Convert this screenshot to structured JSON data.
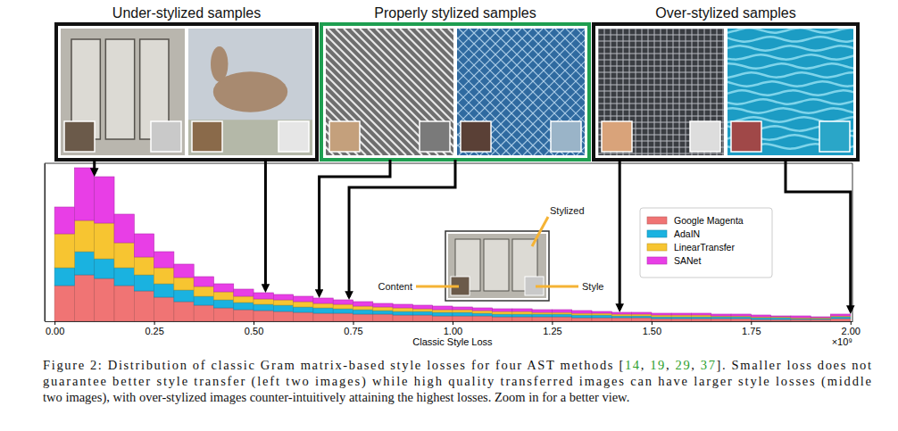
{
  "panels": [
    {
      "title": "Under-stylized samples"
    },
    {
      "title": "Properly stylized samples"
    },
    {
      "title": "Over-stylized samples"
    }
  ],
  "chart_data": {
    "type": "histogram",
    "xlabel": "Classic Style Loss",
    "x_multiplier": "×10⁹",
    "stacked": true,
    "legend": "upper right",
    "tick_labels": "x",
    "bins": [
      0,
      0.05,
      0.1,
      0.15,
      0.2,
      0.25,
      0.3,
      0.35,
      0.4,
      0.45,
      0.5,
      0.55,
      0.6,
      0.65,
      0.7,
      0.75,
      0.8,
      0.85,
      0.9,
      0.95,
      1.0,
      1.05,
      1.1,
      1.15,
      1.2,
      1.25,
      1.3,
      1.35,
      1.4,
      1.45,
      1.5,
      1.55,
      1.6,
      1.65,
      1.7,
      1.75,
      1.8,
      1.85,
      1.9,
      1.95,
      2.0
    ],
    "series": [
      {
        "name": "Google Magenta",
        "color": "#f07474",
        "values": [
          40,
          52,
          48,
          40,
          34,
          27,
          22,
          18,
          15,
          13,
          12,
          11,
          10,
          9,
          9,
          8,
          8,
          7,
          7,
          6,
          6,
          6,
          5,
          5,
          5,
          5,
          4,
          4,
          4,
          4,
          3,
          3,
          3,
          3,
          3,
          2,
          2,
          2,
          2,
          3
        ]
      },
      {
        "name": "AdaIN",
        "color": "#1ab2e0",
        "values": [
          20,
          26,
          22,
          20,
          18,
          15,
          13,
          10,
          9,
          8,
          7,
          7,
          6,
          6,
          5,
          5,
          4,
          4,
          4,
          4,
          4,
          3,
          3,
          3,
          3,
          3,
          3,
          3,
          2,
          2,
          2,
          2,
          2,
          2,
          2,
          2,
          2,
          1,
          1,
          2
        ]
      },
      {
        "name": "LinearTransfer",
        "color": "#f7c531",
        "values": [
          38,
          35,
          40,
          28,
          20,
          18,
          14,
          11,
          9,
          7,
          6,
          6,
          6,
          5,
          5,
          4,
          4,
          4,
          3,
          3,
          3,
          3,
          3,
          3,
          2,
          2,
          2,
          2,
          2,
          2,
          2,
          2,
          2,
          1,
          1,
          1,
          1,
          1,
          1,
          1
        ]
      },
      {
        "name": "SANet",
        "color": "#e83ee6",
        "values": [
          30,
          59,
          52,
          32,
          26,
          18,
          15,
          11,
          9,
          8,
          7,
          6,
          6,
          6,
          5,
          5,
          4,
          4,
          4,
          4,
          3,
          3,
          3,
          3,
          3,
          3,
          3,
          2,
          2,
          2,
          2,
          2,
          2,
          2,
          2,
          2,
          1,
          2,
          1,
          2
        ]
      }
    ],
    "xlim": [
      -0.025,
      2.005
    ],
    "xticks": [
      {
        "value": 0,
        "label": "0.00"
      },
      {
        "value": 0.25,
        "label": "0.25"
      },
      {
        "value": 0.5,
        "label": "0.50"
      },
      {
        "value": 0.75,
        "label": "0.75"
      },
      {
        "value": 1.0,
        "label": "1.00"
      },
      {
        "value": 1.25,
        "label": "1.25"
      },
      {
        "value": 1.5,
        "label": "1.50"
      },
      {
        "value": 1.75,
        "label": "1.75"
      },
      {
        "value": 2.0,
        "label": "2.00"
      }
    ],
    "ylim": [
      0,
      177
    ],
    "yticks": [],
    "arrow_targets": [
      0.1,
      0.53,
      0.665,
      0.74,
      1.42,
      2.0
    ],
    "inset_labels": [
      "Stylized",
      "Content",
      "Style"
    ]
  },
  "caption": {
    "lines": [
      [
        "Figure 2: Distribution of classic Gram matrix-based style losses for four AST methods [",
        "14",
        ", ",
        "19",
        ", ",
        "29",
        ", ",
        "37",
        "]. Smaller loss does not"
      ],
      [
        "guarantee better style transfer (left two images) while high quality transferred images can have larger style losses (middle"
      ],
      [
        "two images), with over-stylized images counter-intuitively attaining the highest losses. Zoom in for a better view."
      ]
    ]
  }
}
